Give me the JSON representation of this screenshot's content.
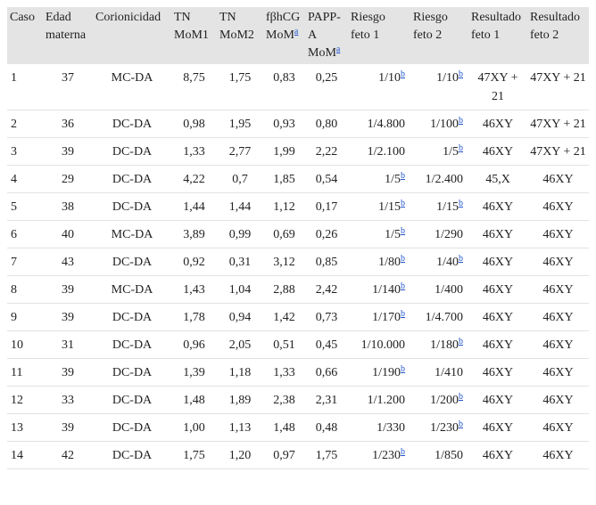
{
  "table": {
    "header": [
      "Caso",
      "Edad materna",
      "Corionicidad",
      "TN MoM1",
      "TN MoM2",
      {
        "text": "fβhCG MoM",
        "sup": "a"
      },
      {
        "text": "PAPP-A MoM",
        "sup": "a"
      },
      "Riesgo feto 1",
      "Riesgo feto 2",
      "Resultado feto 1",
      "Resultado feto 2"
    ],
    "rows": [
      [
        "1",
        "37",
        "MC-DA",
        "8,75",
        "1,75",
        "0,83",
        "0,25",
        {
          "text": "1/10",
          "sup": "b"
        },
        {
          "text": "1/10",
          "sup": "b"
        },
        "47XY + 21",
        "47XY + 21"
      ],
      [
        "2",
        "36",
        "DC-DA",
        "0,98",
        "1,95",
        "0,93",
        "0,80",
        "1/4.800",
        {
          "text": "1/100",
          "sup": "b"
        },
        "46XY",
        "47XY + 21"
      ],
      [
        "3",
        "39",
        "DC-DA",
        "1,33",
        "2,77",
        "1,99",
        "2,22",
        "1/2.100",
        {
          "text": "1/5",
          "sup": "b"
        },
        "46XY",
        "47XY + 21"
      ],
      [
        "4",
        "29",
        "DC-DA",
        "4,22",
        "0,7",
        "1,85",
        "0,54",
        {
          "text": "1/5",
          "sup": "b"
        },
        "1/2.400",
        "45,X",
        "46XY"
      ],
      [
        "5",
        "38",
        "DC-DA",
        "1,44",
        "1,44",
        "1,12",
        "0,17",
        {
          "text": "1/15",
          "sup": "b"
        },
        {
          "text": "1/15",
          "sup": "b"
        },
        "46XY",
        "46XY"
      ],
      [
        "6",
        "40",
        "MC-DA",
        "3,89",
        "0,99",
        "0,69",
        "0,26",
        {
          "text": "1/5",
          "sup": "b"
        },
        "1/290",
        "46XY",
        "46XY"
      ],
      [
        "7",
        "43",
        "DC-DA",
        "0,92",
        "0,31",
        "3,12",
        "0,85",
        {
          "text": "1/80",
          "sup": "b"
        },
        {
          "text": "1/40",
          "sup": "b"
        },
        "46XY",
        "46XY"
      ],
      [
        "8",
        "39",
        "MC-DA",
        "1,43",
        "1,04",
        "2,88",
        "2,42",
        {
          "text": "1/140",
          "sup": "b"
        },
        "1/400",
        "46XY",
        "46XY"
      ],
      [
        "9",
        "39",
        "DC-DA",
        "1,78",
        "0,94",
        "1,42",
        "0,73",
        {
          "text": "1/170",
          "sup": "b"
        },
        "1/4.700",
        "46XY",
        "46XY"
      ],
      [
        "10",
        "31",
        "DC-DA",
        "0,96",
        "2,05",
        "0,51",
        "0,45",
        "1/10.000",
        {
          "text": "1/180",
          "sup": "b"
        },
        "46XY",
        "46XY"
      ],
      [
        "11",
        "39",
        "DC-DA",
        "1,39",
        "1,18",
        "1,33",
        "0,66",
        {
          "text": "1/190",
          "sup": "b"
        },
        "1/410",
        "46XY",
        "46XY"
      ],
      [
        "12",
        "33",
        "DC-DA",
        "1,48",
        "1,89",
        "2,38",
        "2,31",
        "1/1.200",
        {
          "text": "1/200",
          "sup": "b"
        },
        "46XY",
        "46XY"
      ],
      [
        "13",
        "39",
        "DC-DA",
        "1,00",
        "1,13",
        "1,48",
        "0,48",
        "1/330",
        {
          "text": "1/230",
          "sup": "b"
        },
        "46XY",
        "46XY"
      ],
      [
        "14",
        "42",
        "DC-DA",
        "1,75",
        "1,20",
        "0,97",
        "1,75",
        {
          "text": "1/230",
          "sup": "b"
        },
        "1/850",
        "46XY",
        "46XY"
      ]
    ]
  }
}
